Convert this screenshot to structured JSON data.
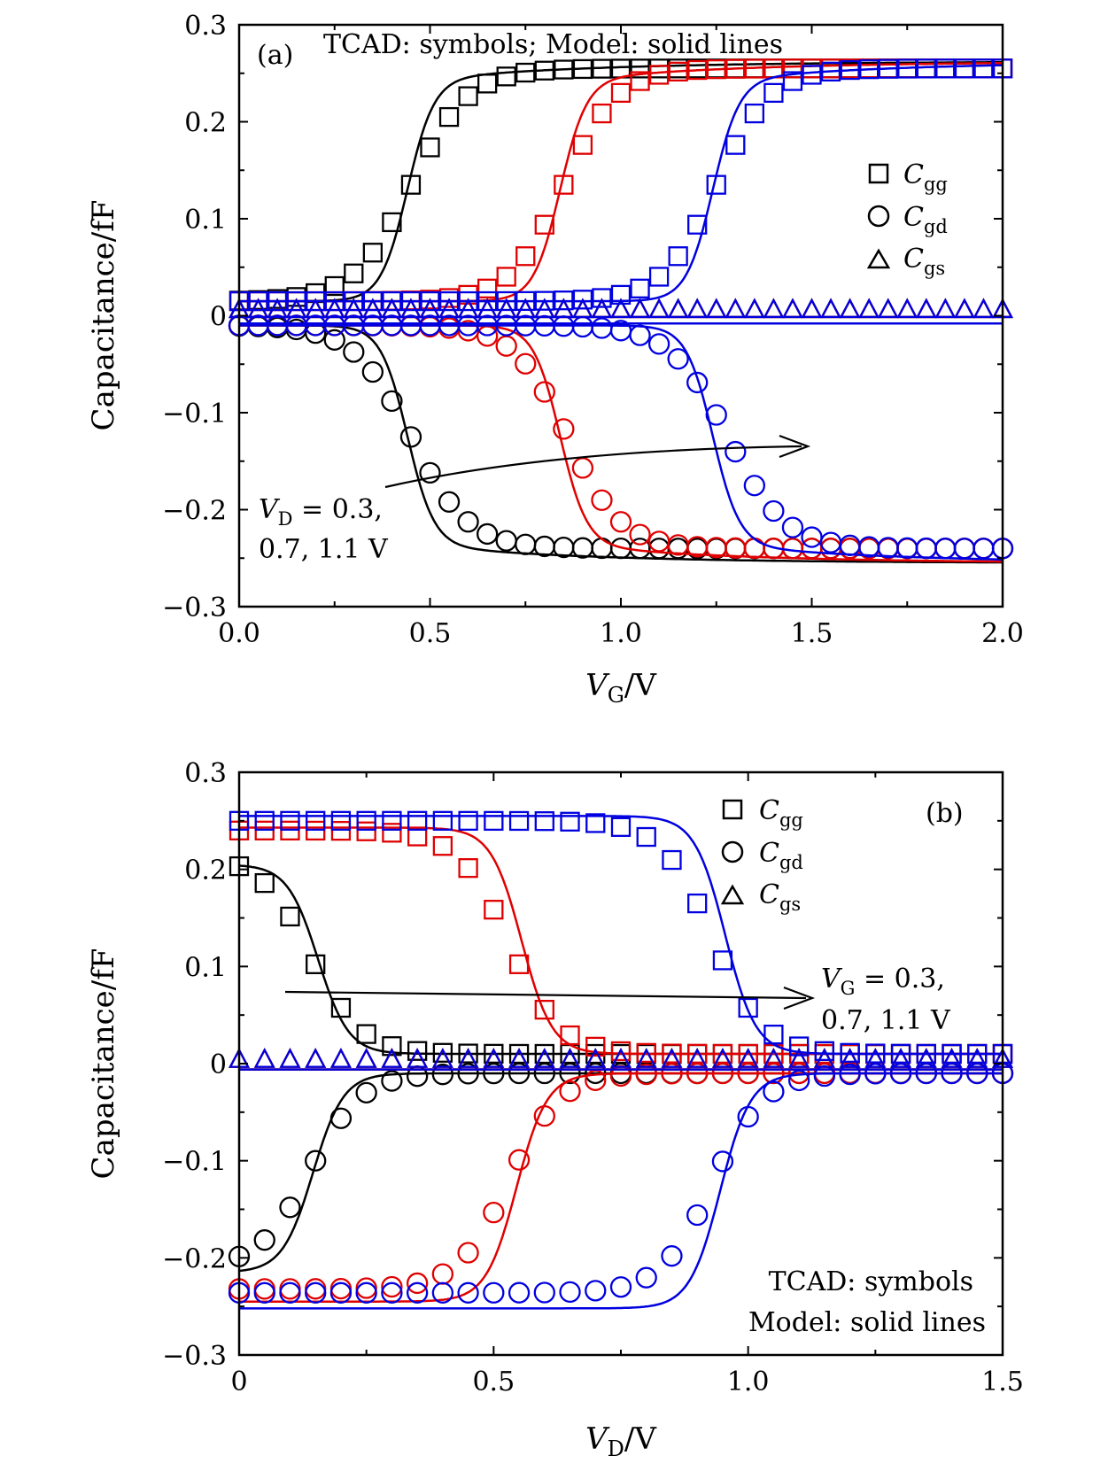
{
  "chart_data": [
    {
      "panel_label": "(a)",
      "type": "line",
      "note": "TCAD: symbols; Model: solid lines",
      "xlabel_var": "V",
      "xlabel_sub": "G",
      "xlabel_unit": "/V",
      "ylabel": "Capacitance/fF",
      "xlim": [
        0.0,
        2.0
      ],
      "ylim": [
        -0.3,
        0.3
      ],
      "xticks": [
        "0.0",
        "0.5",
        "1.0",
        "1.5",
        "2.0"
      ],
      "yticks": [
        "0.3",
        "0.2",
        "0.1",
        "0",
        "−0.1",
        "−0.2",
        "−0.3"
      ],
      "legend": {
        "placement": "right",
        "entries": [
          {
            "marker": "square",
            "var": "C",
            "sub": "gg"
          },
          {
            "marker": "circle",
            "var": "C",
            "sub": "gd"
          },
          {
            "marker": "triangle",
            "var": "C",
            "sub": "gs"
          }
        ]
      },
      "annotation": {
        "var": "V",
        "sub": "D",
        "line1_rest": " = 0.3,",
        "line2": "0.7, 1.1 V"
      },
      "sweep_param_values": [
        0.3,
        0.7,
        1.1
      ],
      "colors": [
        "#000000",
        "#e00000",
        "#0000e0"
      ],
      "model": {
        "gg_low": 0.015,
        "gg_high": 0.262,
        "gg_centers": [
          0.44,
          0.84,
          1.24
        ],
        "gg_widths": [
          0.035,
          0.035,
          0.035
        ],
        "gd_low": -0.01,
        "gd_high": -0.255,
        "gd_centers": [
          0.44,
          0.84,
          1.24
        ],
        "gs_level": -0.008
      },
      "tcad": {
        "x_step": 0.05,
        "gg_low": 0.015,
        "gg_high": 0.255,
        "gg_centers": [
          0.45,
          0.85,
          1.25
        ],
        "gg_widths": [
          0.075,
          0.07,
          0.07
        ],
        "gd_low": -0.01,
        "gd_high": -0.24,
        "gd_centers": [
          0.45,
          0.86,
          1.28
        ],
        "gd_widths": [
          0.075,
          0.07,
          0.075
        ],
        "gs_level": 0.006
      }
    },
    {
      "panel_label": "(b)",
      "type": "line",
      "note_line1": "TCAD: symbols",
      "note_line2": "Model: solid lines",
      "xlabel_var": "V",
      "xlabel_sub": "D",
      "xlabel_unit": "/V",
      "ylabel": "Capacitance/fF",
      "xlim": [
        0.0,
        1.5
      ],
      "ylim": [
        -0.3,
        0.3
      ],
      "xticks": [
        "0",
        "0.5",
        "1.0",
        "1.5"
      ],
      "yticks": [
        "0.3",
        "0.2",
        "0.1",
        "0",
        "−0.1",
        "−0.2",
        "−0.3"
      ],
      "legend": {
        "placement": "top",
        "entries": [
          {
            "marker": "square",
            "var": "C",
            "sub": "gg"
          },
          {
            "marker": "circle",
            "var": "C",
            "sub": "gd"
          },
          {
            "marker": "triangle",
            "var": "C",
            "sub": "gs"
          }
        ]
      },
      "annotation": {
        "var": "V",
        "sub": "G",
        "line1_rest": " = 0.3,",
        "line2": "0.7, 1.1 V"
      },
      "sweep_param_values": [
        0.3,
        0.7,
        1.1
      ],
      "colors": [
        "#000000",
        "#e00000",
        "#0000e0"
      ],
      "model": {
        "gg_low": 0.01,
        "gg_high": [
          0.205,
          0.243,
          0.255
        ],
        "gg_centers": [
          0.155,
          0.555,
          0.955
        ],
        "gg_widths": [
          0.03,
          0.03,
          0.03
        ],
        "gd_low": -0.01,
        "gd_high": [
          -0.215,
          -0.245,
          -0.252
        ],
        "gd_centers": [
          0.145,
          0.545,
          0.945
        ],
        "gs_level": -0.006
      },
      "tcad": {
        "x_step": 0.05,
        "gg_low": 0.01,
        "gg_high": [
          0.215,
          0.24,
          0.25
        ],
        "gg_centers": [
          0.14,
          0.53,
          0.93
        ],
        "gg_widths": [
          0.05,
          0.05,
          0.05
        ],
        "gd_low": -0.01,
        "gd_high": [
          -0.21,
          -0.232,
          -0.236
        ],
        "gd_centers": [
          0.14,
          0.53,
          0.93
        ],
        "gd_widths": [
          0.05,
          0.05,
          0.05
        ],
        "gs_level": 0.004
      }
    }
  ]
}
